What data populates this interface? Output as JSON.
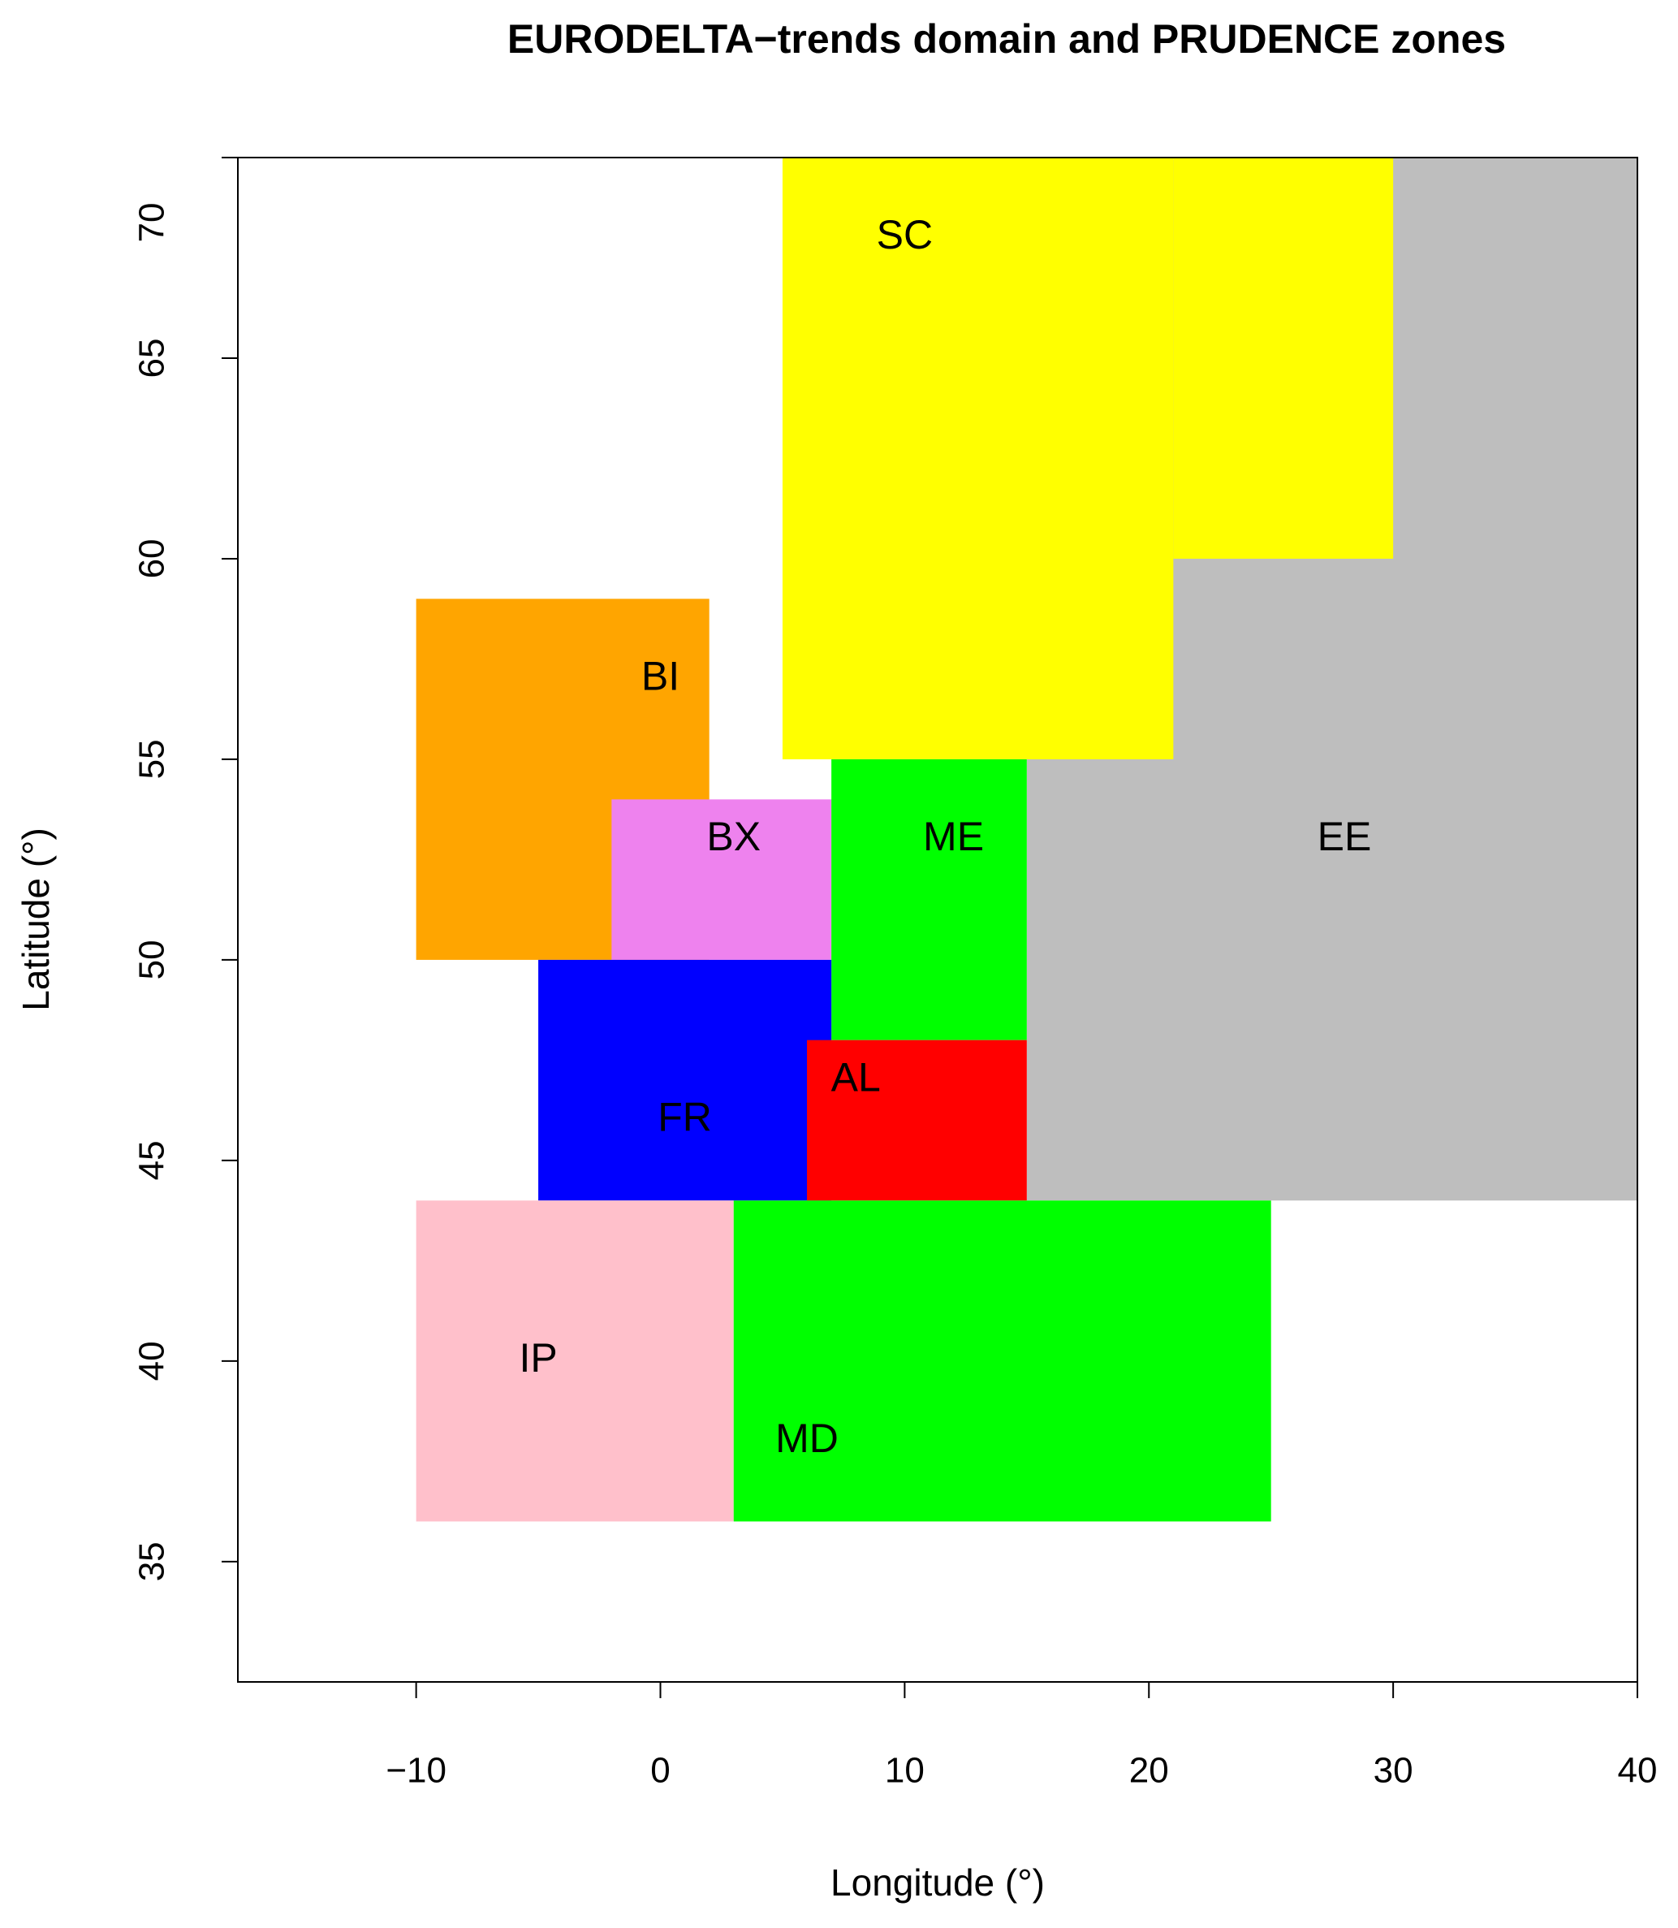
{
  "chart_data": {
    "type": "zones",
    "title": "EURODELTA−trends domain and PRUDENCE zones",
    "x_label": "Longitude (°)",
    "y_label": "Latitude (°)",
    "xlim": [
      -17.3,
      40
    ],
    "ylim": [
      32,
      70
    ],
    "xticks": [
      {
        "value": -10,
        "label": "−10"
      },
      0,
      10,
      20,
      30,
      40
    ],
    "yticks": [
      35,
      40,
      45,
      50,
      55,
      60,
      65,
      70
    ],
    "zones": [
      {
        "name": "EE",
        "color": "#bebebe",
        "boxes": [
          [
            15,
            40,
            44,
            70
          ]
        ]
      },
      {
        "name": "SC",
        "color": "#ffff00",
        "boxes": [
          [
            5,
            21,
            55,
            70
          ],
          [
            21,
            30,
            60,
            70
          ]
        ]
      },
      {
        "name": "BI",
        "color": "#ffa500",
        "boxes": [
          [
            -10,
            2,
            50,
            59
          ]
        ]
      },
      {
        "name": "BX",
        "color": "#ee82ee",
        "boxes": [
          [
            -2,
            7,
            50,
            54
          ]
        ]
      },
      {
        "name": "ME",
        "color": "#00ff00",
        "boxes": [
          [
            7,
            15,
            48,
            55
          ]
        ]
      },
      {
        "name": "FR",
        "color": "#0000ff",
        "boxes": [
          [
            -5,
            7,
            44,
            50
          ]
        ]
      },
      {
        "name": "AL",
        "color": "#ff0000",
        "boxes": [
          [
            6,
            15,
            44,
            48
          ]
        ]
      },
      {
        "name": "IP",
        "color": "#ffc0cb",
        "boxes": [
          [
            -10,
            3,
            36,
            44
          ]
        ]
      },
      {
        "name": "MD",
        "color": "#00ff00",
        "boxes": [
          [
            3,
            25,
            36,
            44
          ]
        ]
      }
    ]
  }
}
